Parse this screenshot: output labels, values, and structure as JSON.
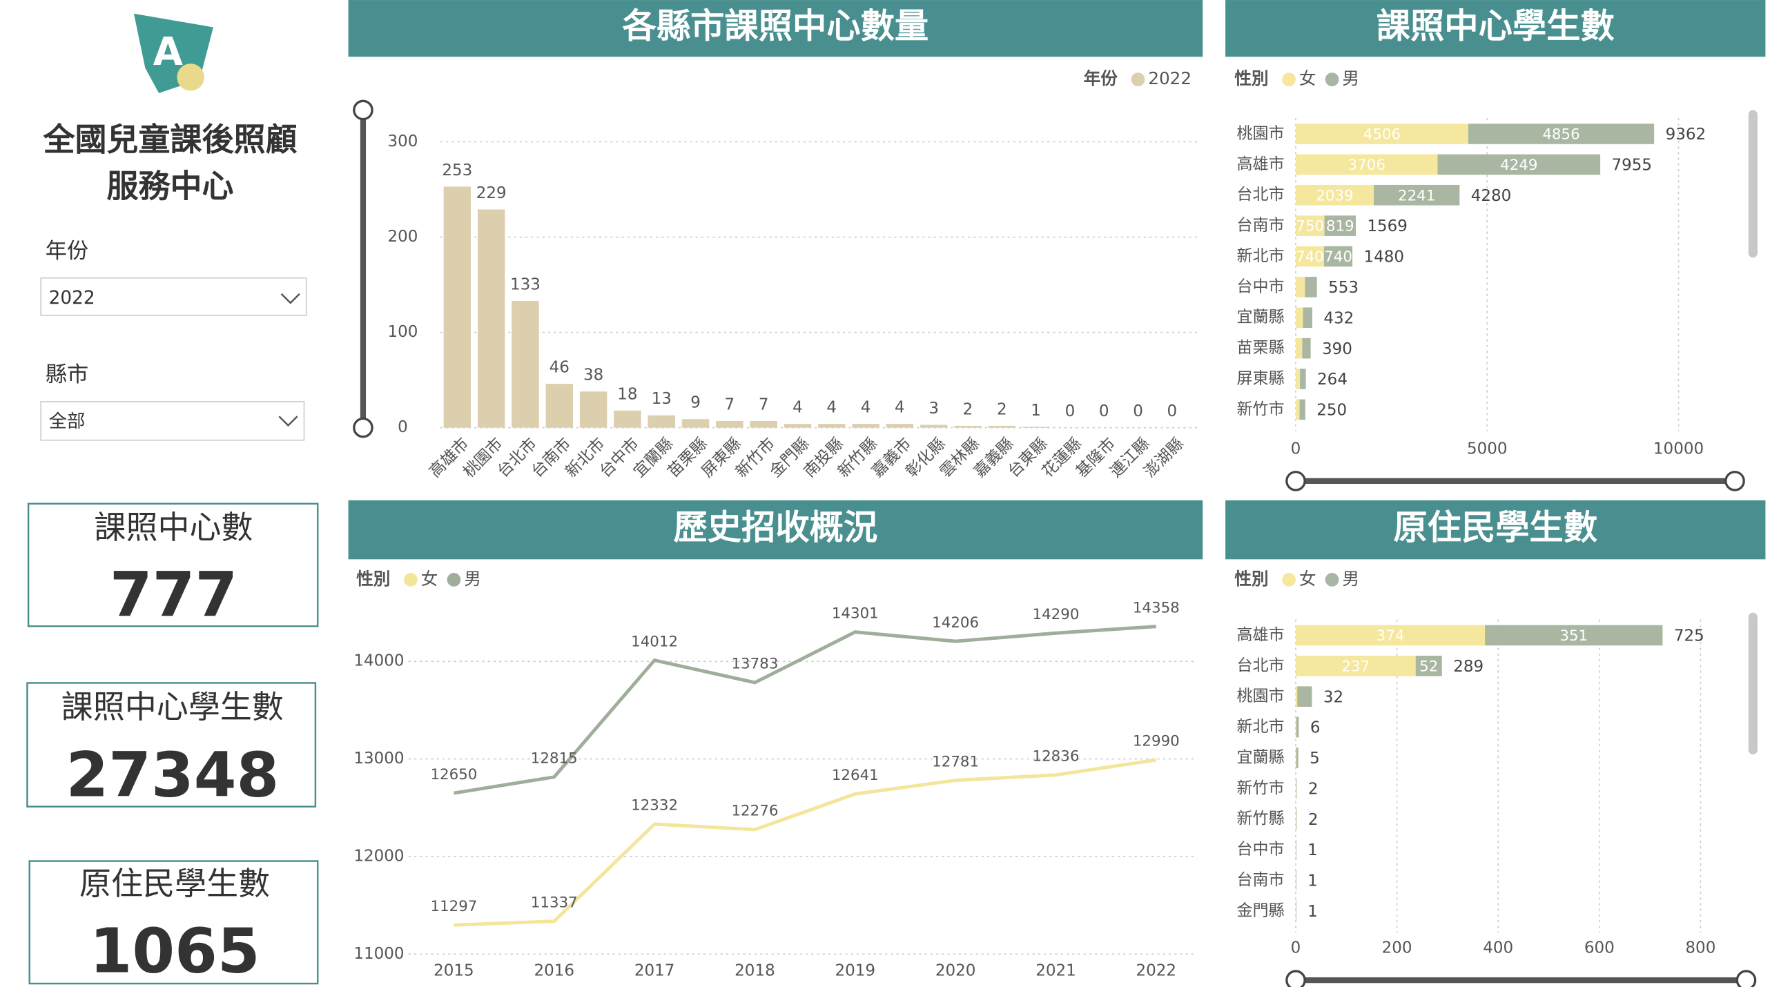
{
  "header": {
    "title_lines": [
      "全國兒童課後照顧",
      "服務中心"
    ]
  },
  "filters": [
    {
      "label": "年份",
      "value": "2022"
    },
    {
      "label": "縣市",
      "value": "全部"
    }
  ],
  "kpis": [
    {
      "label": "課照中心數",
      "value": 777
    },
    {
      "label": "課照中心學生數",
      "value": 27348
    },
    {
      "label": "原住民學生數",
      "value": 1065
    }
  ],
  "chart_data": [
    {
      "type": "bar",
      "title": "各縣市課照中心數量",
      "legend_title": "年份",
      "categories": [
        "高雄市",
        "桃園市",
        "台北市",
        "台南市",
        "新北市",
        "台中市",
        "宜蘭縣",
        "苗栗縣",
        "屏東縣",
        "新竹市",
        "金門縣",
        "南投縣",
        "新竹縣",
        "嘉義市",
        "彰化縣",
        "雲林縣",
        "嘉義縣",
        "台東縣",
        "花蓮縣",
        "基隆市",
        "連江縣",
        "澎湖縣"
      ],
      "series": [
        {
          "name": "2022",
          "color": "#dccfae",
          "values": [
            253,
            229,
            133,
            46,
            38,
            18,
            13,
            9,
            7,
            7,
            4,
            4,
            4,
            4,
            3,
            2,
            2,
            1,
            0,
            0,
            0,
            0
          ]
        }
      ],
      "ylim": [
        0,
        300
      ],
      "yticks": [
        0,
        100,
        200,
        300
      ],
      "grid": true
    },
    {
      "type": "hbar_stacked",
      "title": "課照中心學生數",
      "legend_title": "性別",
      "categories": [
        "桃園市",
        "高雄市",
        "台北市",
        "台南市",
        "新北市",
        "台中市",
        "宜蘭縣",
        "苗栗縣",
        "屏東縣",
        "新竹市"
      ],
      "series": [
        {
          "name": "女",
          "color": "#f5e79e",
          "values": [
            4506,
            3706,
            2039,
            750,
            740,
            240,
            190,
            170,
            110,
            100
          ]
        },
        {
          "name": "男",
          "color": "#a9b6a2",
          "values": [
            4856,
            4249,
            2241,
            819,
            740,
            313,
            242,
            220,
            154,
            150
          ]
        }
      ],
      "totals": [
        9362,
        7955,
        4280,
        1569,
        1480,
        553,
        432,
        390,
        264,
        250
      ],
      "xlim": [
        0,
        11500
      ],
      "xticks": [
        0,
        5000,
        10000
      ],
      "grid": true
    },
    {
      "type": "line",
      "title": "歷史招收概況",
      "legend_title": "性別",
      "categories": [
        "2015",
        "2016",
        "2017",
        "2018",
        "2019",
        "2020",
        "2021",
        "2022"
      ],
      "series": [
        {
          "name": "女",
          "color": "#f3e59a",
          "values": [
            11297,
            11337,
            12332,
            12276,
            12641,
            12781,
            12836,
            12990
          ]
        },
        {
          "name": "男",
          "color": "#9fae9b",
          "values": [
            12650,
            12815,
            14012,
            13783,
            14301,
            14206,
            14290,
            14358
          ]
        }
      ],
      "ylim": [
        11000,
        14500
      ],
      "yticks": [
        11000,
        12000,
        13000,
        14000
      ],
      "grid": true
    },
    {
      "type": "hbar_stacked",
      "title": "原住民學生數",
      "legend_title": "性別",
      "categories": [
        "高雄市",
        "台北市",
        "桃園市",
        "新北市",
        "宜蘭縣",
        "新竹市",
        "新竹縣",
        "台中市",
        "台南市",
        "金門縣"
      ],
      "series": [
        {
          "name": "女",
          "color": "#f5e79e",
          "values": [
            374,
            237,
            3,
            1,
            1,
            1,
            1,
            0,
            0,
            0
          ]
        },
        {
          "name": "男",
          "color": "#a9b6a2",
          "values": [
            351,
            52,
            29,
            5,
            4,
            1,
            1,
            1,
            1,
            1
          ]
        }
      ],
      "totals": [
        725,
        289,
        32,
        6,
        5,
        2,
        2,
        1,
        1,
        1
      ],
      "xlim": [
        0,
        870
      ],
      "xticks": [
        0,
        200,
        400,
        600,
        800
      ],
      "grid": true
    }
  ]
}
